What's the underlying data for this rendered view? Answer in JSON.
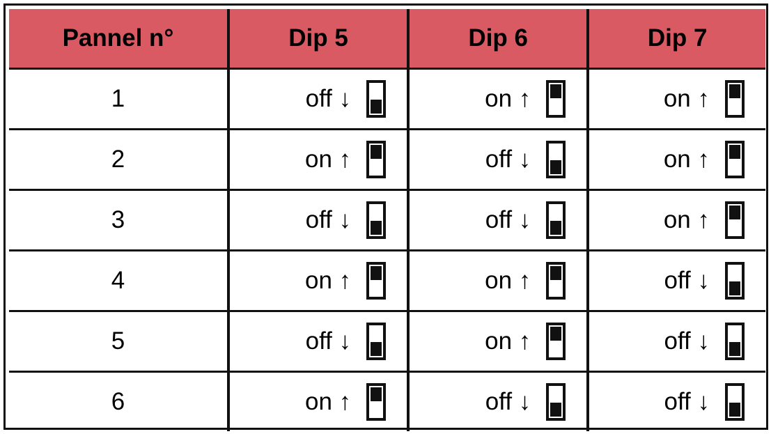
{
  "header": [
    "Pannel n°",
    "Dip 5",
    "Dip 6",
    "Dip 7"
  ],
  "colors": {
    "header_bg": "#d95a63"
  },
  "rows": [
    {
      "panel": "1",
      "dips": [
        {
          "label": "off ↓",
          "state": "off"
        },
        {
          "label": "on ↑",
          "state": "on"
        },
        {
          "label": "on ↑",
          "state": "on"
        }
      ]
    },
    {
      "panel": "2",
      "dips": [
        {
          "label": "on ↑",
          "state": "on"
        },
        {
          "label": "off ↓",
          "state": "off"
        },
        {
          "label": "on ↑",
          "state": "on"
        }
      ]
    },
    {
      "panel": "3",
      "dips": [
        {
          "label": "off ↓",
          "state": "off"
        },
        {
          "label": "off ↓",
          "state": "off"
        },
        {
          "label": "on ↑",
          "state": "on"
        }
      ]
    },
    {
      "panel": "4",
      "dips": [
        {
          "label": "on ↑",
          "state": "on"
        },
        {
          "label": "on ↑",
          "state": "on"
        },
        {
          "label": "off ↓",
          "state": "off"
        }
      ]
    },
    {
      "panel": "5",
      "dips": [
        {
          "label": "off ↓",
          "state": "off"
        },
        {
          "label": "on ↑",
          "state": "on"
        },
        {
          "label": "off ↓",
          "state": "off"
        }
      ]
    },
    {
      "panel": "6",
      "dips": [
        {
          "label": "on ↑",
          "state": "on"
        },
        {
          "label": "off ↓",
          "state": "off"
        },
        {
          "label": "off ↓",
          "state": "off"
        }
      ]
    }
  ]
}
